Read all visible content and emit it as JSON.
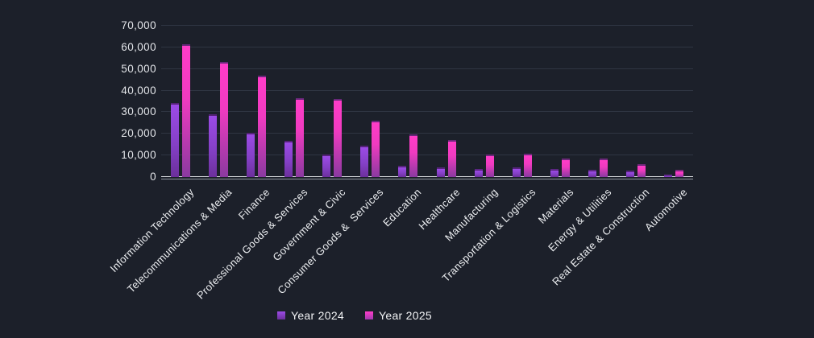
{
  "chart_data": {
    "type": "bar",
    "title": "",
    "categories": [
      "Information Technology",
      "Telecommunications & Media",
      "Finance",
      "Professional Goods & Services",
      "Government & Civic",
      "Consumer Goods &  Services",
      "Education",
      "Healthcare",
      "Manufacturing",
      "Transportation & Logistics",
      "Materials",
      "Energy & Utilities",
      "Real Estate & Construction",
      "Automotive"
    ],
    "series": [
      {
        "name": "Year 2024",
        "color_top": "#9c4be6",
        "color_bottom": "#6c309c",
        "values": [
          34400,
          29000,
          20600,
          16600,
          10400,
          14400,
          5400,
          4500,
          3700,
          4400,
          3600,
          3400,
          2800,
          1100
        ]
      },
      {
        "name": "Year 2025",
        "color_top": "#ff3cc8",
        "color_bottom": "#8a3aa0",
        "values": [
          61600,
          53400,
          47100,
          36500,
          36100,
          26000,
          19900,
          17000,
          10500,
          10800,
          8400,
          8500,
          6100,
          3300
        ]
      }
    ],
    "ylim": [
      0,
      70000
    ],
    "y_ticks": [
      0,
      10000,
      20000,
      30000,
      40000,
      50000,
      60000,
      70000
    ],
    "y_tick_labels": [
      "0",
      "10,000",
      "20,000",
      "30,000",
      "40,000",
      "50,000",
      "60,000",
      "70,000"
    ],
    "grid": "horizontal-on",
    "legend_position": "bottom",
    "colors": {
      "background": "#1c202a",
      "gridline": "#2f3542",
      "axis_line": "#dddfe4",
      "tick_text": "#e3e5e9",
      "category_text": "#eceef1",
      "legend_text": "#f2f3f5"
    }
  }
}
